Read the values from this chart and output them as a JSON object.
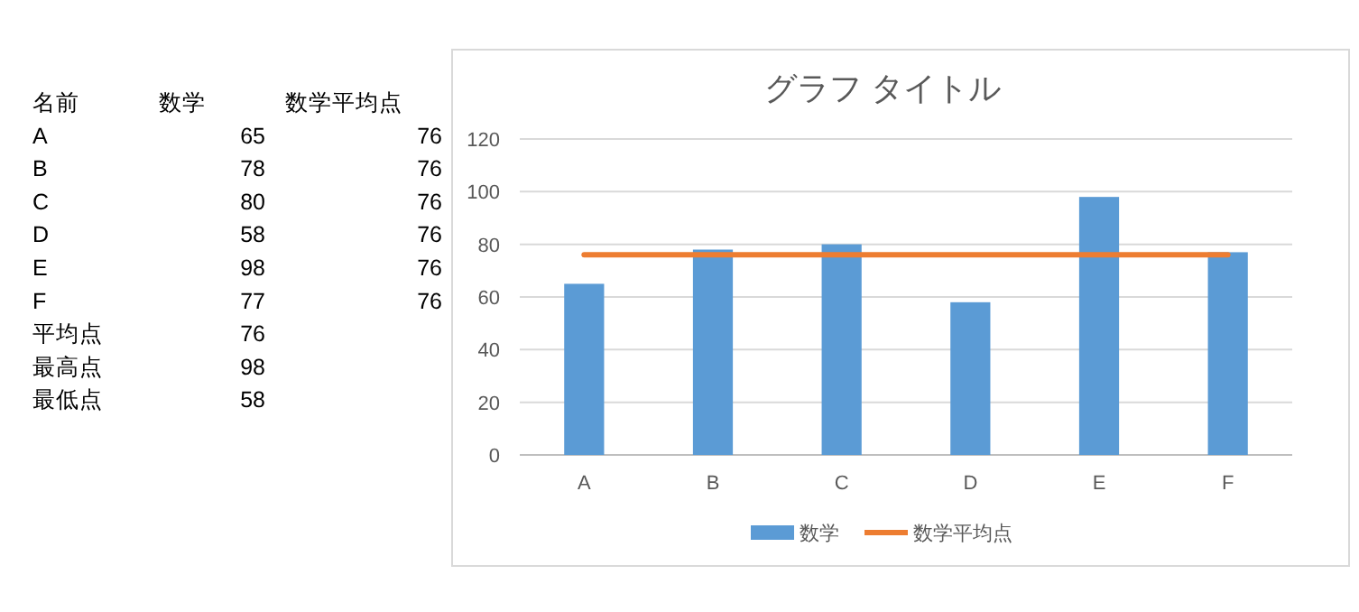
{
  "chart_data": [
    {
      "type": "other",
      "annotations": [
        "名前",
        "数学",
        "数学平均点",
        "A",
        "65",
        "76",
        "B",
        "78",
        "76",
        "C",
        "80",
        "76",
        "D",
        "58",
        "76",
        "E",
        "98",
        "76",
        "F",
        "77",
        "76",
        "平均点",
        "76",
        "最高点",
        "98",
        "最低点",
        "58"
      ]
    },
    {
      "type": "bar",
      "title": "グラフ タイトル",
      "categories": [
        "A",
        "B",
        "C",
        "D",
        "E",
        "F"
      ],
      "series": [
        {
          "name": "数学",
          "type": "bar",
          "color": "#5b9bd5",
          "values": [
            65,
            78,
            80,
            58,
            98,
            77
          ]
        },
        {
          "name": "数学平均点",
          "type": "line",
          "color": "#ed7d31",
          "values": [
            76,
            76,
            76,
            76,
            76,
            76
          ]
        }
      ],
      "ylim": [
        0,
        120
      ],
      "yticks": [
        0,
        20,
        40,
        60,
        80,
        100,
        120
      ],
      "grid": "y",
      "legend": "bottom"
    }
  ]
}
